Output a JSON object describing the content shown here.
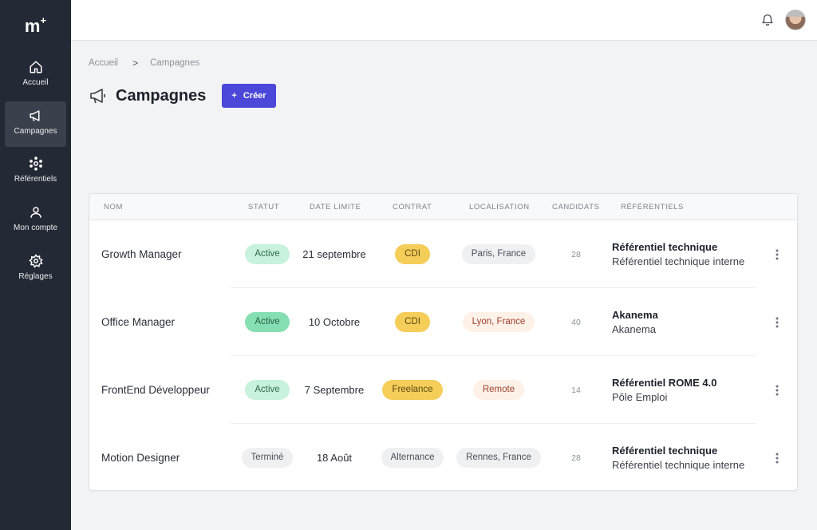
{
  "brand": {
    "logo_text": "m",
    "logo_sup": "+"
  },
  "sidebar": {
    "items": [
      {
        "label": "Accueil",
        "icon": "home-icon",
        "active": false
      },
      {
        "label": "Campagnes",
        "icon": "megaphone-icon",
        "active": true
      },
      {
        "label": "Référentiels",
        "icon": "network-icon",
        "active": false
      },
      {
        "label": "Mon compte",
        "icon": "user-icon",
        "active": false
      },
      {
        "label": "Réglages",
        "icon": "gear-icon",
        "active": false
      }
    ]
  },
  "topbar": {
    "notification_icon": "bell-icon",
    "avatar": "user-avatar"
  },
  "breadcrumb": {
    "home": "Accueil",
    "separator": ">",
    "current": "Campagnes"
  },
  "page": {
    "title": "Campagnes",
    "title_icon": "megaphone-icon",
    "create_icon": "+",
    "create_label": "Créer"
  },
  "table": {
    "headers": {
      "nom": "NOM",
      "statut": "STATUT",
      "date": "DATE LIMITE",
      "contrat": "CONTRAT",
      "localisation": "LOCALISATION",
      "candidats": "CANDIDATS",
      "referentiels": "RÉFÉRENTIELS"
    },
    "rows": [
      {
        "name": "Growth Manager",
        "status": "Active",
        "date": "21 septembre",
        "contract": "CDI",
        "location": "Paris, France",
        "candidates": "28",
        "ref_title": "Référentiel technique",
        "ref_sub": "Référentiel technique interne"
      },
      {
        "name": "Office Manager",
        "status": "Active",
        "date": "10 Octobre",
        "contract": "CDI",
        "location": "Lyon, France",
        "candidates": "40",
        "ref_title": "Akanema",
        "ref_sub": "Akanema"
      },
      {
        "name": "FrontEnd Développeur",
        "status": "Active",
        "date": "7 Septembre",
        "contract": "Freelance",
        "location": "Remote",
        "candidates": "14",
        "ref_title": "Référentiel ROME 4.0",
        "ref_sub": "Pôle Emploi"
      },
      {
        "name": "Motion Designer",
        "status": "Terminé",
        "date": "18 Août",
        "contract": "Alternance",
        "location": "Rennes, France",
        "candidates": "28",
        "ref_title": "Référentiel technique",
        "ref_sub": "Référentiel technique interne"
      }
    ]
  },
  "colors": {
    "sidebar_bg": "#242a35",
    "primary": "#4b47d9",
    "status_active_bg": "#c8f2dd",
    "status_active_bg_strong": "#86dfb3",
    "status_active_text": "#2f6b4d",
    "status_done_bg": "#eef0f2",
    "contract_yellow": "#f5cd59",
    "location_grey": "#eef0f2",
    "location_peach": "#fdf1e8",
    "location_peach_text": "#a0412f"
  }
}
